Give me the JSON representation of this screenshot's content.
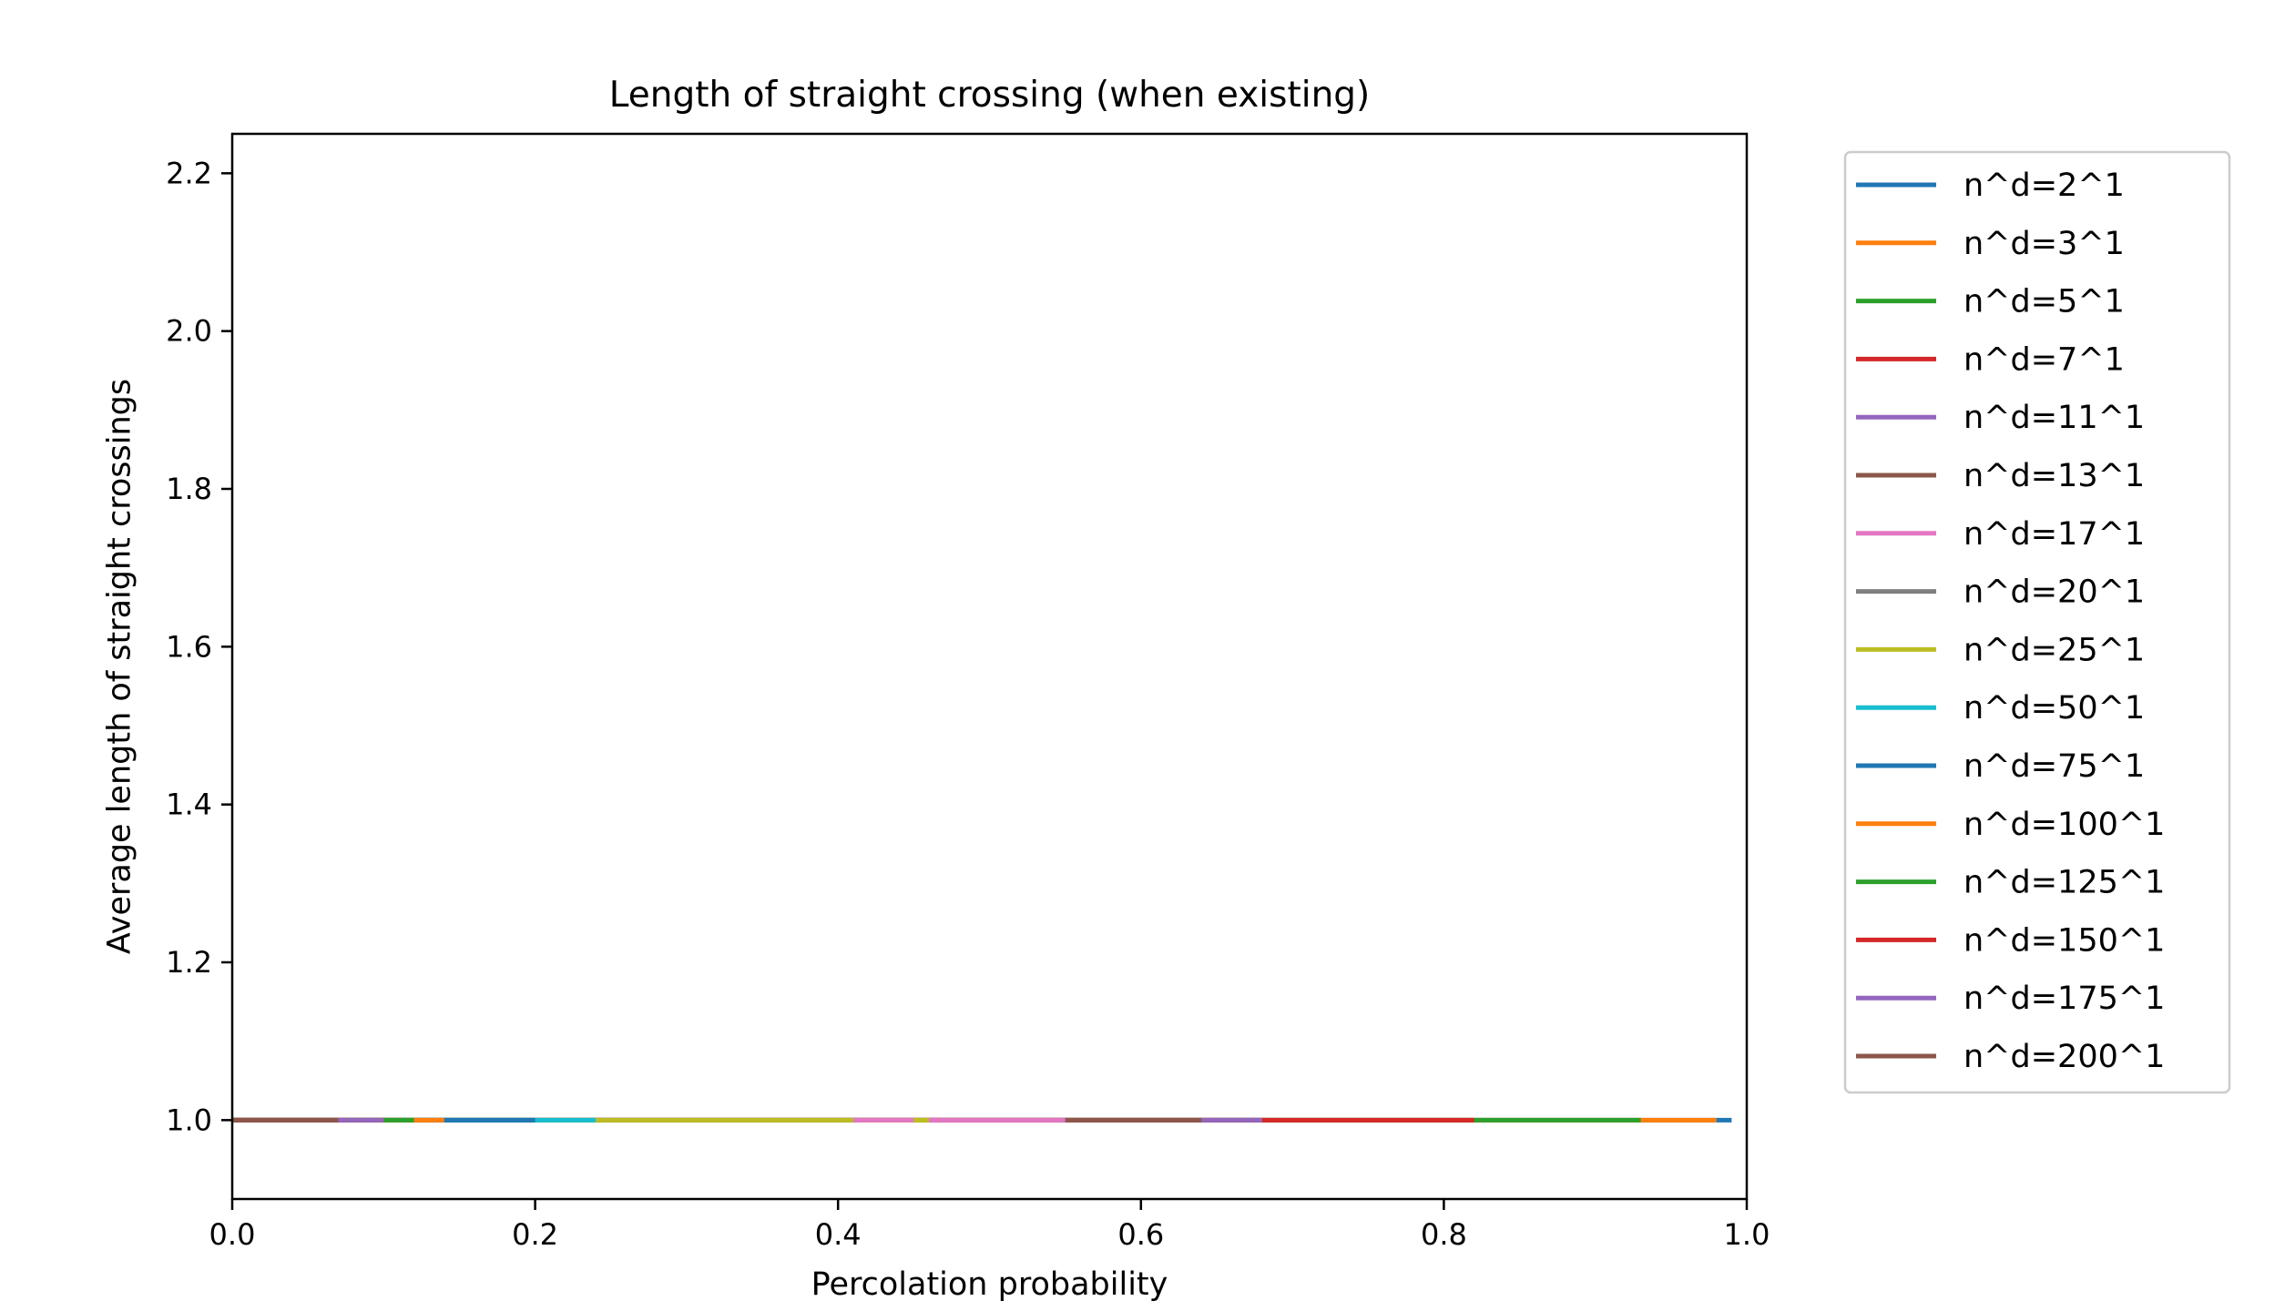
{
  "chart_data": {
    "type": "line",
    "title": "Length of straight crossing (when existing)",
    "xlabel": "Percolation probability",
    "ylabel": "Average length of straight crossings",
    "xlim": [
      0.0,
      1.0
    ],
    "ylim": [
      0.9,
      2.25
    ],
    "xticks": [
      "0.0",
      "0.2",
      "0.4",
      "0.6",
      "0.8",
      "1.0"
    ],
    "yticks": [
      "1.0",
      "1.2",
      "1.4",
      "1.6",
      "1.8",
      "2.0",
      "2.2"
    ],
    "grid": false,
    "legend_placement": "outside-right",
    "series": [
      {
        "name": "n^d=2^1",
        "color": "#1f77b4",
        "x": [
          0.0,
          0.99
        ],
        "y": [
          1.0,
          1.0
        ]
      },
      {
        "name": "n^d=3^1",
        "color": "#ff7f0e",
        "x": [
          0.0,
          0.98
        ],
        "y": [
          1.0,
          1.0
        ]
      },
      {
        "name": "n^d=5^1",
        "color": "#2ca02c",
        "x": [
          0.0,
          0.93
        ],
        "y": [
          1.0,
          1.0
        ]
      },
      {
        "name": "n^d=7^1",
        "color": "#d62728",
        "x": [
          0.0,
          0.82
        ],
        "y": [
          1.0,
          1.0
        ]
      },
      {
        "name": "n^d=11^1",
        "color": "#9467bd",
        "x": [
          0.0,
          0.68
        ],
        "y": [
          1.0,
          1.0
        ]
      },
      {
        "name": "n^d=13^1",
        "color": "#8c564b",
        "x": [
          0.0,
          0.64
        ],
        "y": [
          1.0,
          1.0
        ]
      },
      {
        "name": "n^d=17^1",
        "color": "#e377c2",
        "x": [
          0.0,
          0.55
        ],
        "y": [
          1.0,
          1.0
        ]
      },
      {
        "name": "n^d=20^1",
        "color": "#7f7f7f",
        "x": [
          0.0,
          0.46
        ],
        "y": [
          1.0,
          1.0
        ]
      },
      {
        "name": "n^d=25^1",
        "color": "#bcbd22",
        "x": [
          0.0,
          0.46
        ],
        "y": [
          1.0,
          1.0
        ]
      },
      {
        "name": "n^d=50^1",
        "color": "#17becf",
        "x": [
          0.0,
          0.24
        ],
        "y": [
          1.0,
          1.0
        ]
      },
      {
        "name": "n^d=75^1",
        "color": "#1f77b4",
        "x": [
          0.0,
          0.2
        ],
        "y": [
          1.0,
          1.0
        ]
      },
      {
        "name": "n^d=100^1",
        "color": "#ff7f0e",
        "x": [
          0.0,
          0.14
        ],
        "y": [
          1.0,
          1.0
        ]
      },
      {
        "name": "n^d=125^1",
        "color": "#2ca02c",
        "x": [
          0.0,
          0.12
        ],
        "y": [
          1.0,
          1.0
        ]
      },
      {
        "name": "n^d=150^1",
        "color": "#d62728",
        "x": [
          0.0,
          0.1
        ],
        "y": [
          1.0,
          1.0
        ]
      },
      {
        "name": "n^d=175^1",
        "color": "#9467bd",
        "x": [
          0.0,
          0.1
        ],
        "y": [
          1.0,
          1.0
        ]
      },
      {
        "name": "n^d=200^1",
        "color": "#8c564b",
        "x": [
          0.0,
          0.07
        ],
        "y": [
          1.0,
          1.0
        ]
      }
    ],
    "overlay_segments": [
      {
        "color": "#e377c2",
        "x": [
          0.41,
          0.45
        ]
      },
      {
        "color": "#bcbd22",
        "x": [
          0.45,
          0.46
        ]
      }
    ]
  }
}
